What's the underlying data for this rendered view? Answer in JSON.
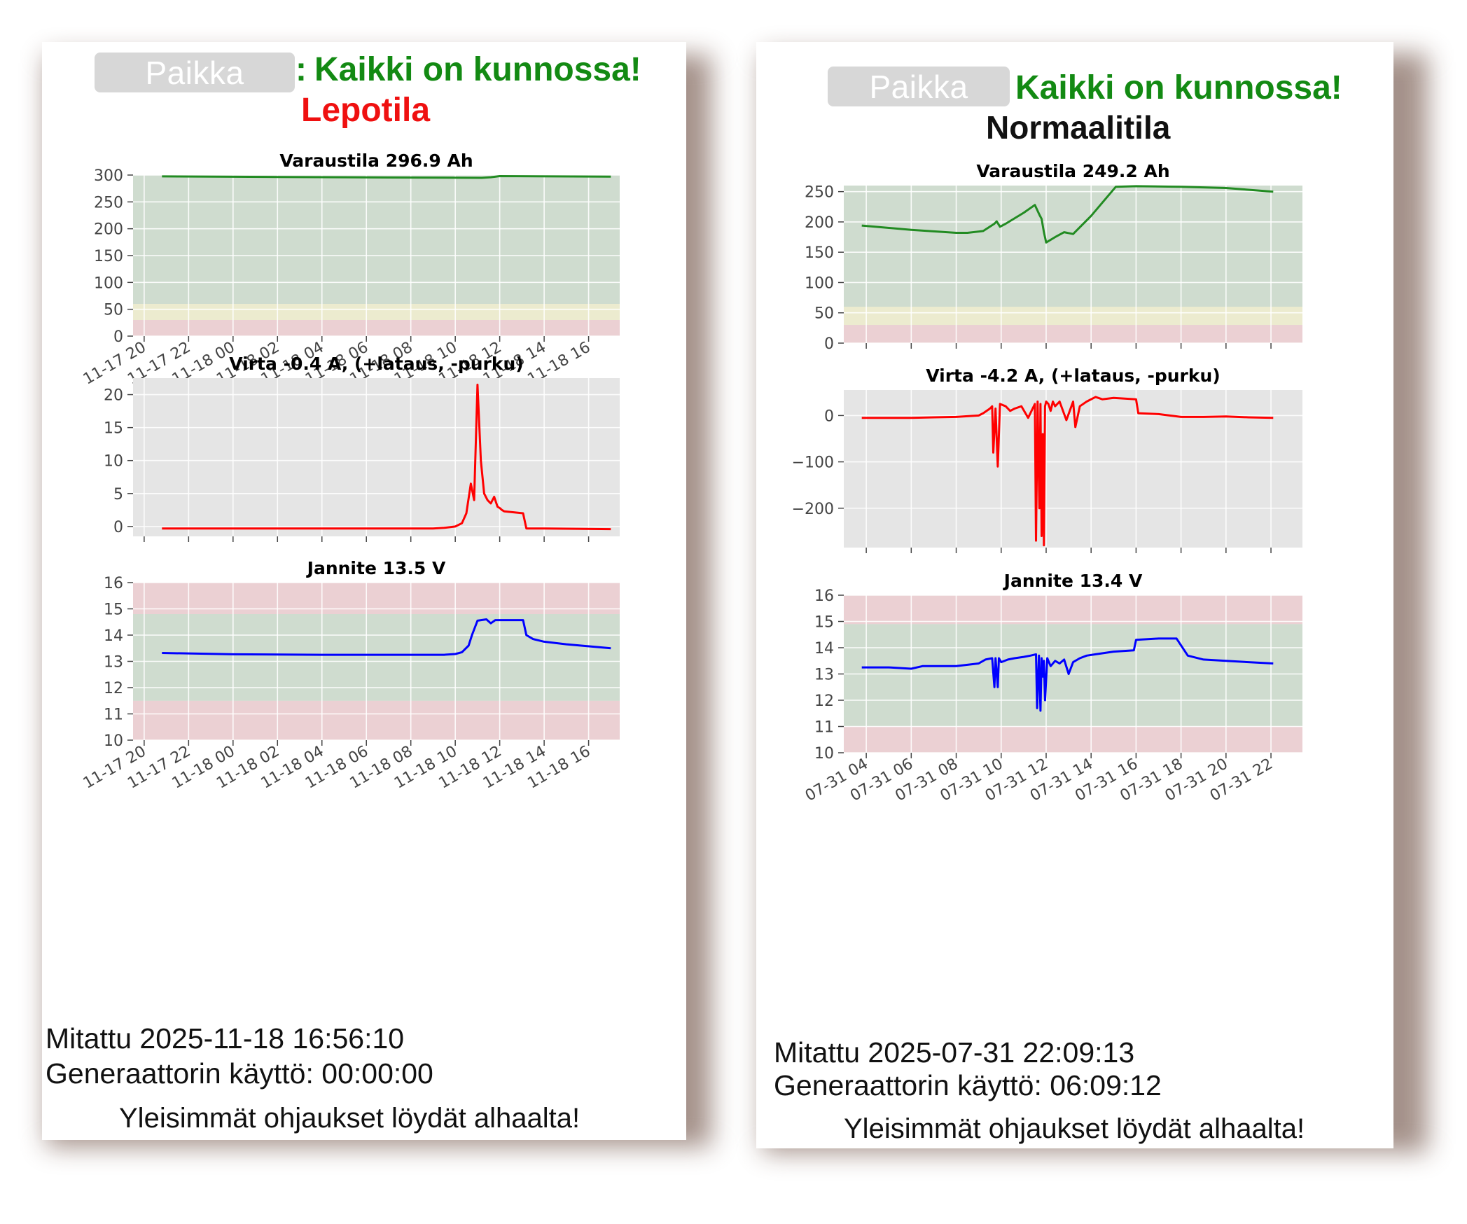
{
  "palette": {
    "ok_band": "#cfdccf",
    "warn_band": "#ecebcf",
    "bad_band": "#ebd0d3",
    "plot_bg": "#e5e5e5",
    "soc_line": "#228b22",
    "current_line": "#ff0000",
    "voltage_line": "#0000ff"
  },
  "left": {
    "place_label": "Paikka",
    "separator": ":",
    "status": "Kaikki on kunnossa!",
    "mode": "Lepotila",
    "measured": "Mitattu 2025-11-18 16:56:10",
    "generator": "Generaattorin käyttö: 00:00:00",
    "footer": "Yleisimmät ohjaukset löydät alhaalta!"
  },
  "right": {
    "place_label": "Paikka",
    "status": "Kaikki on kunnossa!",
    "mode": "Normaalitila",
    "measured": "Mitattu 2025-07-31 22:09:13",
    "generator": "Generaattorin käyttö: 06:09:12",
    "footer": "Yleisimmät ohjaukset löydät alhaalta!"
  },
  "chart_data": [
    {
      "type": "line",
      "panel": "left",
      "title": "Varaustila 296.9 Ah",
      "ylim": [
        0,
        300
      ],
      "yticks": [
        0,
        50,
        100,
        150,
        200,
        250,
        300
      ],
      "xlim": [
        19.5,
        41.4
      ],
      "xticks": [
        20,
        22,
        24,
        26,
        28,
        30,
        32,
        34,
        36,
        38,
        40
      ],
      "xticklabels": [
        "11-17 20",
        "11-17 22",
        "11-18 00",
        "11-18 02",
        "11-18 04",
        "11-18 06",
        "11-18 08",
        "11-18 10",
        "11-18 12",
        "11-18 14",
        "11-18 16"
      ],
      "grid": true,
      "bands": [
        {
          "from": 0,
          "to": 30,
          "kind": "bad"
        },
        {
          "from": 30,
          "to": 60,
          "kind": "warn"
        },
        {
          "from": 60,
          "to": 300,
          "kind": "ok"
        }
      ],
      "series": [
        {
          "color": "soc_line",
          "x": [
            20.8,
            26,
            31,
            35.2,
            35.6,
            36,
            41
          ],
          "y": [
            297.5,
            296.5,
            295.5,
            294.8,
            296,
            298,
            297
          ]
        }
      ]
    },
    {
      "type": "line",
      "panel": "left",
      "title": "Virta -0.4 A, (+lataus, -purku)",
      "ylim": [
        -1.5,
        22.5
      ],
      "yticks": [
        0,
        5,
        10,
        15,
        20
      ],
      "xlim": [
        19.5,
        41.4
      ],
      "xticks": [
        20,
        22,
        24,
        26,
        28,
        30,
        32,
        34,
        36,
        38,
        40
      ],
      "grid": true,
      "bands": [],
      "series": [
        {
          "color": "current_line",
          "x": [
            20.8,
            25,
            30,
            33,
            33.5,
            34,
            34.3,
            34.5,
            34.7,
            34.85,
            35,
            35.15,
            35.3,
            35.45,
            35.6,
            35.75,
            35.9,
            36,
            36.1,
            36.2,
            37.05,
            37.2,
            38,
            41
          ],
          "y": [
            -0.3,
            -0.3,
            -0.3,
            -0.3,
            -0.2,
            0,
            0.5,
            2,
            6.5,
            4,
            21.5,
            10,
            5,
            4,
            3.5,
            4.5,
            3,
            2.8,
            2.5,
            2.3,
            2,
            -0.3,
            -0.3,
            -0.4
          ]
        }
      ]
    },
    {
      "type": "line",
      "panel": "left",
      "title": "Jannite 13.5 V",
      "ylim": [
        10,
        16
      ],
      "yticks": [
        10,
        11,
        12,
        13,
        14,
        15,
        16
      ],
      "xlim": [
        19.5,
        41.4
      ],
      "xticks": [
        20,
        22,
        24,
        26,
        28,
        30,
        32,
        34,
        36,
        38,
        40
      ],
      "xticklabels": [
        "11-17 20",
        "11-17 22",
        "11-18 00",
        "11-18 02",
        "11-18 04",
        "11-18 06",
        "11-18 08",
        "11-18 10",
        "11-18 12",
        "11-18 14",
        "11-18 16"
      ],
      "grid": true,
      "bands": [
        {
          "from": 10,
          "to": 11.5,
          "kind": "bad"
        },
        {
          "from": 11.5,
          "to": 14.8,
          "kind": "ok"
        },
        {
          "from": 14.8,
          "to": 16,
          "kind": "bad"
        }
      ],
      "series": [
        {
          "color": "voltage_line",
          "x": [
            20.8,
            24,
            28,
            32,
            33.5,
            34,
            34.3,
            34.6,
            34.75,
            35,
            35.4,
            35.6,
            35.8,
            36.2,
            37.05,
            37.2,
            37.5,
            38,
            39,
            41
          ],
          "y": [
            13.32,
            13.27,
            13.25,
            13.25,
            13.25,
            13.28,
            13.35,
            13.6,
            14.0,
            14.55,
            14.6,
            14.45,
            14.57,
            14.57,
            14.57,
            14.0,
            13.85,
            13.75,
            13.65,
            13.5
          ]
        }
      ]
    },
    {
      "type": "line",
      "panel": "right",
      "title": "Varaustila 249.2 Ah",
      "ylim": [
        0,
        260
      ],
      "yticks": [
        0,
        50,
        100,
        150,
        200,
        250
      ],
      "xlim": [
        3.0,
        23.4
      ],
      "xticks": [
        4,
        6,
        8,
        10,
        12,
        14,
        16,
        18,
        20,
        22
      ],
      "grid": true,
      "bands": [
        {
          "from": 0,
          "to": 30,
          "kind": "bad"
        },
        {
          "from": 30,
          "to": 60,
          "kind": "warn"
        },
        {
          "from": 60,
          "to": 260,
          "kind": "ok"
        }
      ],
      "series": [
        {
          "color": "soc_line",
          "x": [
            3.8,
            6,
            8,
            8.5,
            9.2,
            9.7,
            9.8,
            9.95,
            10.2,
            11,
            11.5,
            11.7,
            11.8,
            11.9,
            12,
            12.4,
            12.8,
            13.2,
            14,
            15.1,
            16,
            18,
            20,
            22.1
          ],
          "y": [
            194,
            187,
            182,
            182,
            185,
            197,
            201,
            192,
            197,
            215,
            228,
            212,
            205,
            183,
            166,
            175,
            183,
            180,
            210,
            258,
            259,
            258,
            256,
            250
          ]
        }
      ]
    },
    {
      "type": "line",
      "panel": "right",
      "title": "Virta -4.2 A, (+lataus, -purku)",
      "ylim": [
        -285,
        55
      ],
      "yticks": [
        -200,
        -100,
        0
      ],
      "xlim": [
        3.0,
        23.4
      ],
      "xticks": [
        4,
        6,
        8,
        10,
        12,
        14,
        16,
        18,
        20,
        22
      ],
      "grid": true,
      "bands": [],
      "series": [
        {
          "color": "current_line",
          "x": [
            3.8,
            5,
            6,
            7,
            8,
            9,
            9.2,
            9.5,
            9.6,
            9.65,
            9.75,
            9.85,
            9.95,
            10.2,
            10.4,
            10.6,
            10.9,
            11.2,
            11.5,
            11.55,
            11.62,
            11.7,
            11.75,
            11.8,
            11.85,
            11.9,
            11.95,
            12,
            12.1,
            12.2,
            12.3,
            12.4,
            12.6,
            12.9,
            13.2,
            13.3,
            13.5,
            13.8,
            14.2,
            14.5,
            15,
            16,
            16.1,
            17,
            18,
            19,
            20,
            21,
            22.1
          ],
          "y": [
            -5,
            -5,
            -5,
            -4,
            -3,
            0,
            5,
            15,
            20,
            -80,
            15,
            -110,
            25,
            20,
            10,
            15,
            20,
            -5,
            25,
            -270,
            30,
            -200,
            25,
            -260,
            -40,
            -280,
            20,
            30,
            25,
            10,
            30,
            20,
            30,
            -10,
            30,
            -25,
            20,
            30,
            40,
            35,
            38,
            35,
            5,
            3,
            -3,
            -3,
            -2,
            -4,
            -5
          ]
        }
      ]
    },
    {
      "type": "line",
      "panel": "right",
      "title": "Jannite 13.4 V",
      "ylim": [
        10,
        16
      ],
      "yticks": [
        10,
        11,
        12,
        13,
        14,
        15,
        16
      ],
      "xlim": [
        3.0,
        23.4
      ],
      "xticks": [
        4,
        6,
        8,
        10,
        12,
        14,
        16,
        18,
        20,
        22
      ],
      "xticklabels": [
        "07-31 04",
        "07-31 06",
        "07-31 08",
        "07-31 10",
        "07-31 12",
        "07-31 14",
        "07-31 16",
        "07-31 18",
        "07-31 20",
        "07-31 22"
      ],
      "grid": true,
      "bands": [
        {
          "from": 10,
          "to": 11,
          "kind": "bad"
        },
        {
          "from": 11,
          "to": 14.9,
          "kind": "ok"
        },
        {
          "from": 14.9,
          "to": 16,
          "kind": "bad"
        }
      ],
      "series": [
        {
          "color": "voltage_line",
          "x": [
            3.8,
            5,
            6,
            6.5,
            8,
            9,
            9.3,
            9.6,
            9.7,
            9.75,
            9.85,
            9.9,
            10,
            10.3,
            10.6,
            11,
            11.3,
            11.55,
            11.6,
            11.68,
            11.75,
            11.8,
            11.85,
            11.9,
            11.95,
            12.05,
            12.2,
            12.4,
            12.6,
            12.8,
            13,
            13.2,
            13.5,
            13.8,
            14.2,
            15,
            15.9,
            16,
            17,
            17.8,
            18.3,
            19,
            20,
            21,
            22.1
          ],
          "y": [
            13.25,
            13.25,
            13.2,
            13.3,
            13.3,
            13.4,
            13.55,
            13.6,
            12.5,
            13.6,
            12.5,
            13.6,
            13.45,
            13.55,
            13.6,
            13.65,
            13.7,
            13.75,
            11.7,
            13.7,
            11.6,
            13.6,
            12.9,
            13.5,
            12.0,
            13.6,
            13.3,
            13.5,
            13.4,
            13.55,
            13.0,
            13.45,
            13.6,
            13.7,
            13.75,
            13.85,
            13.9,
            14.3,
            14.35,
            14.35,
            13.7,
            13.55,
            13.5,
            13.45,
            13.4
          ]
        }
      ]
    }
  ]
}
